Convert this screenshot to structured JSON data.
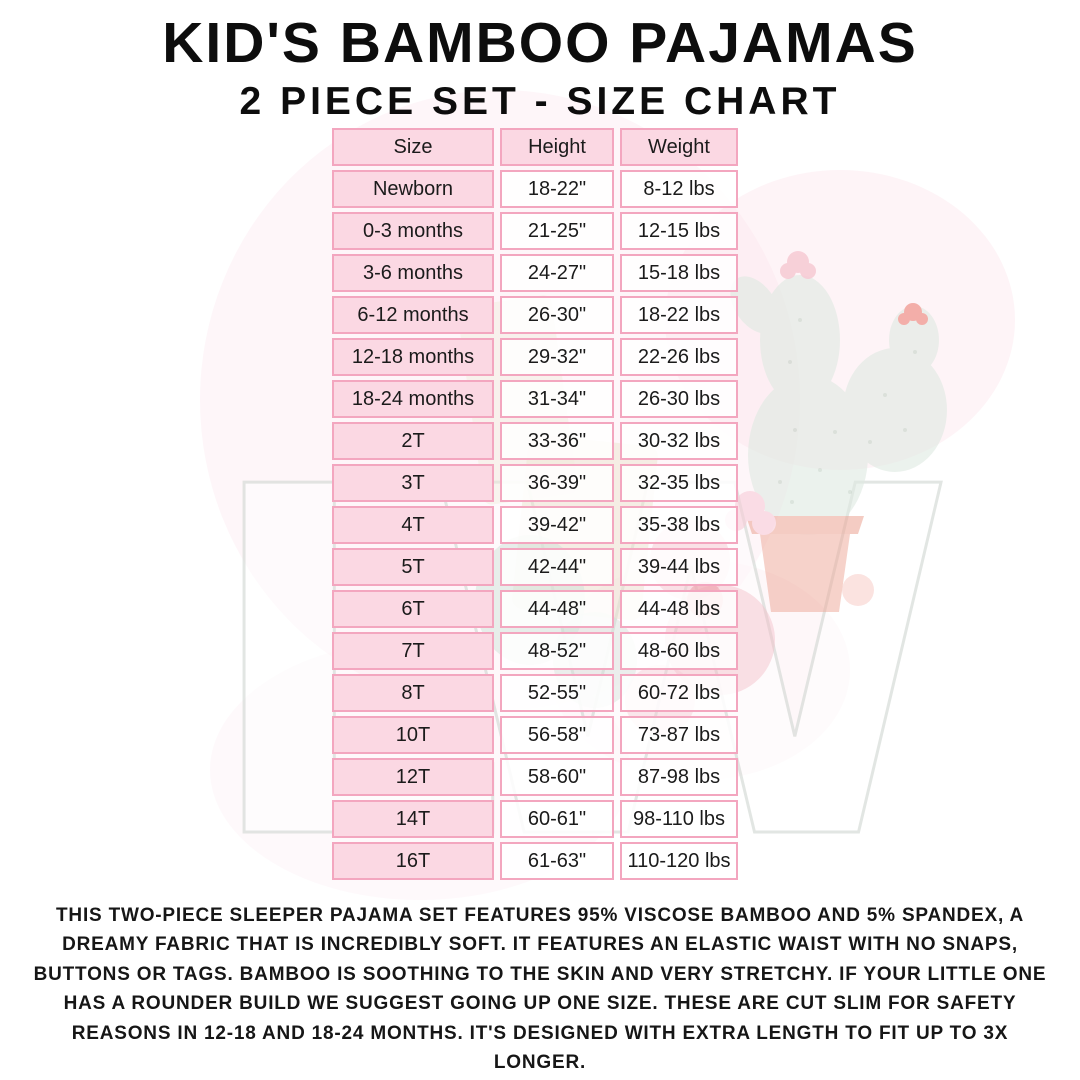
{
  "title": {
    "line1": "KID'S BAMBOO PAJAMAS",
    "line2": "2 PIECE SET - SIZE CHART"
  },
  "size_chart": {
    "columns": [
      "Size",
      "Height",
      "Weight"
    ],
    "rows": [
      [
        "Newborn",
        "18-22\"",
        "8-12 lbs"
      ],
      [
        "0-3 months",
        "21-25\"",
        "12-15 lbs"
      ],
      [
        "3-6 months",
        "24-27\"",
        "15-18 lbs"
      ],
      [
        "6-12 months",
        "26-30\"",
        "18-22 lbs"
      ],
      [
        "12-18 months",
        "29-32\"",
        "22-26 lbs"
      ],
      [
        "18-24 months",
        "31-34\"",
        "26-30 lbs"
      ],
      [
        "2T",
        "33-36\"",
        "30-32 lbs"
      ],
      [
        "3T",
        "36-39\"",
        "32-35 lbs"
      ],
      [
        "4T",
        "39-42\"",
        "35-38 lbs"
      ],
      [
        "5T",
        "42-44\"",
        "39-44 lbs"
      ],
      [
        "6T",
        "44-48\"",
        "44-48 lbs"
      ],
      [
        "7T",
        "48-52\"",
        "48-60 lbs"
      ],
      [
        "8T",
        "52-55\"",
        "60-72 lbs"
      ],
      [
        "10T",
        "56-58\"",
        "73-87 lbs"
      ],
      [
        "12T",
        "58-60\"",
        "87-98 lbs"
      ],
      [
        "14T",
        "60-61\"",
        "98-110 lbs"
      ],
      [
        "16T",
        "61-63\"",
        "110-120 lbs"
      ]
    ]
  },
  "description": "THIS TWO-PIECE SLEEPER PAJAMA SET FEATURES 95% VISCOSE BAMBOO AND 5% SPANDEX, A DREAMY FABRIC THAT IS INCREDIBLY SOFT. IT FEATURES AN ELASTIC WAIST WITH NO SNAPS, BUTTONS OR TAGS. BAMBOO IS SOOTHING TO THE SKIN AND VERY STRETCHY. IF YOUR LITTLE ONE HAS A ROUNDER BUILD WE SUGGEST GOING UP ONE SIZE. THESE ARE CUT SLIM FOR SAFETY REASONS IN 12-18 AND 18-24 MONTHS. IT'S DESIGNED WITH EXTRA LENGTH TO FIT UP TO 3X LONGER.",
  "watermark": {
    "text": "LW"
  },
  "colors": {
    "table_border_pink": "#f3a6bf",
    "label_cell_pink": "#fbd8e3",
    "value_cell_white": "#ffffff",
    "text_black": "#1b1b1b",
    "watermark_green": "#dfeae2",
    "watermark_blush": "#fce4ec",
    "watermark_pot_terracotta": "#edab9c"
  }
}
